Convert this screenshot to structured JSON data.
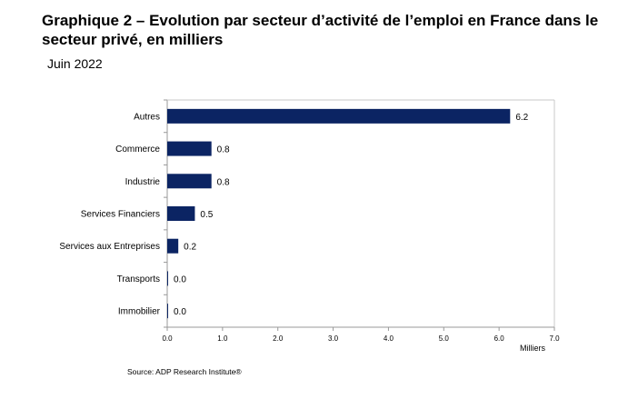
{
  "header": {
    "title": "Graphique 2 – Evolution par secteur d’activité de l’emploi en France dans le secteur privé, en milliers",
    "subtitle": "Juin 2022"
  },
  "footer": {
    "source": "Source: ADP Research Institute®"
  },
  "chart_data": {
    "type": "bar",
    "orientation": "horizontal",
    "categories": [
      "Autres",
      "Commerce",
      "Industrie",
      "Services Financiers",
      "Services aux Entreprises",
      "Transports",
      "Immobilier"
    ],
    "values": [
      6.2,
      0.8,
      0.8,
      0.5,
      0.2,
      0.0,
      0.0
    ],
    "data_labels": [
      "6.2",
      "0.8",
      "0.8",
      "0.5",
      "0.2",
      "0.0",
      "0.0"
    ],
    "xlabel": "Milliers",
    "xlim": [
      0,
      7
    ],
    "xticks": [
      "0.0",
      "1.0",
      "2.0",
      "3.0",
      "4.0",
      "5.0",
      "6.0",
      "7.0"
    ],
    "grid": false,
    "legend": "none",
    "colors": {
      "bar": "#0b2463",
      "axis": "#999999"
    }
  }
}
